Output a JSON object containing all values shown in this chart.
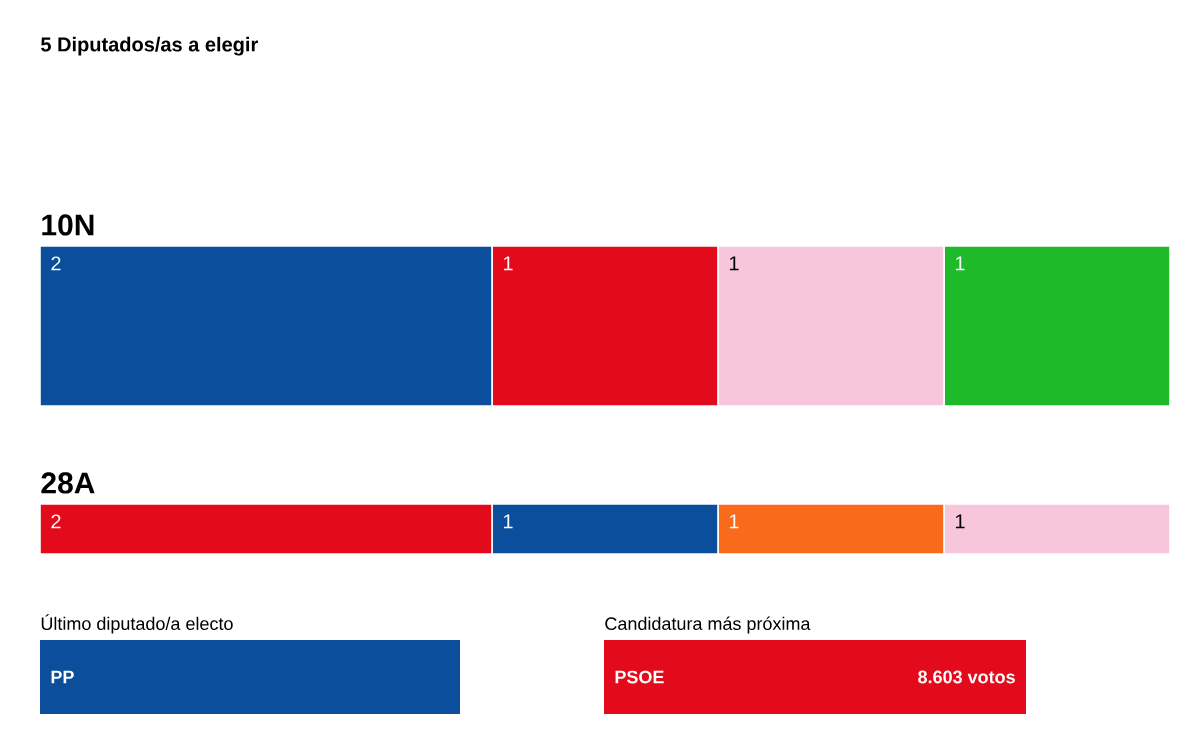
{
  "chart_data": [
    {
      "type": "bar",
      "orientation": "horizontal",
      "stacked": true,
      "title": "10N",
      "annotations": [
        "5 Diputados/as a elegir"
      ],
      "series": [
        {
          "color": "#0b4f9c",
          "values": [
            2
          ],
          "value_labels": [
            "2"
          ]
        },
        {
          "color": "#e30b1b",
          "values": [
            1
          ],
          "value_labels": [
            "1"
          ]
        },
        {
          "color": "#f7c6db",
          "values": [
            1
          ],
          "value_labels": [
            "1"
          ]
        },
        {
          "color": "#1fba2a",
          "values": [
            1
          ],
          "value_labels": [
            "1"
          ]
        }
      ]
    },
    {
      "type": "bar",
      "orientation": "horizontal",
      "stacked": true,
      "title": "28A",
      "series": [
        {
          "color": "#e30b1b",
          "values": [
            2
          ],
          "value_labels": [
            "2"
          ]
        },
        {
          "color": "#0b4f9c",
          "values": [
            1
          ],
          "value_labels": [
            "1"
          ]
        },
        {
          "color": "#f96a1b",
          "values": [
            1
          ],
          "value_labels": [
            "1"
          ]
        },
        {
          "color": "#f7c6db",
          "values": [
            1
          ],
          "value_labels": [
            "1"
          ]
        }
      ]
    },
    {
      "type": "other",
      "annotations": [
        "Último diputado/a electo",
        "PP",
        "Candidatura más próxima",
        "PSOE",
        "8.603 votos"
      ],
      "colors": [
        "#0b4f9c",
        "#e30b1b"
      ]
    }
  ]
}
